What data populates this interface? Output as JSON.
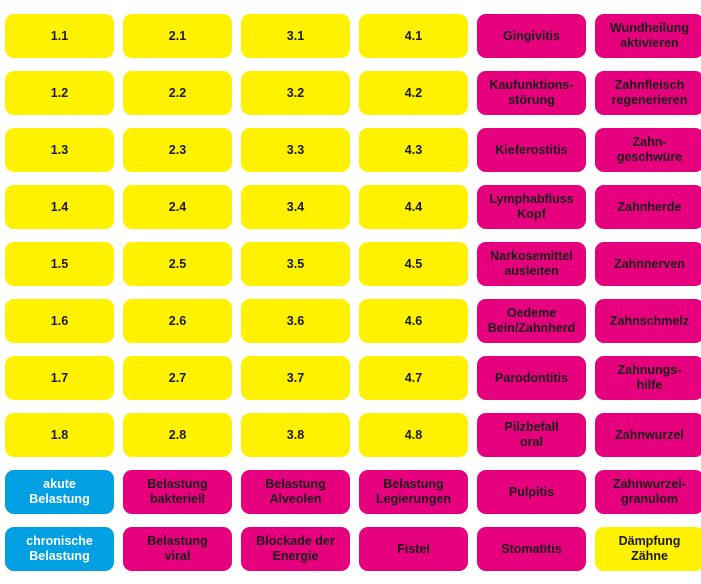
{
  "colors": {
    "yellow": "#fff200",
    "magenta": "#e6007e",
    "blue": "#00a0e3"
  },
  "rows": [
    [
      {
        "label": "1.1",
        "color": "yellow"
      },
      {
        "label": "2.1",
        "color": "yellow"
      },
      {
        "label": "3.1",
        "color": "yellow"
      },
      {
        "label": "4.1",
        "color": "yellow"
      },
      {
        "label": "Gingivitis",
        "color": "magenta"
      },
      {
        "label": "Wundheilung\naktivieren",
        "color": "magenta"
      }
    ],
    [
      {
        "label": "1.2",
        "color": "yellow"
      },
      {
        "label": "2.2",
        "color": "yellow"
      },
      {
        "label": "3.2",
        "color": "yellow"
      },
      {
        "label": "4.2",
        "color": "yellow"
      },
      {
        "label": "Kaufunktions-\nstörung",
        "color": "magenta"
      },
      {
        "label": "Zahnfleisch\nregenerieren",
        "color": "magenta"
      }
    ],
    [
      {
        "label": "1.3",
        "color": "yellow"
      },
      {
        "label": "2.3",
        "color": "yellow"
      },
      {
        "label": "3.3",
        "color": "yellow"
      },
      {
        "label": "4.3",
        "color": "yellow"
      },
      {
        "label": "Kieferostitis",
        "color": "magenta"
      },
      {
        "label": "Zahn-\ngeschwüre",
        "color": "magenta"
      }
    ],
    [
      {
        "label": "1.4",
        "color": "yellow"
      },
      {
        "label": "2.4",
        "color": "yellow"
      },
      {
        "label": "3.4",
        "color": "yellow"
      },
      {
        "label": "4.4",
        "color": "yellow"
      },
      {
        "label": "Lymphabfluss\nKopf",
        "color": "magenta"
      },
      {
        "label": "Zahnherde",
        "color": "magenta"
      }
    ],
    [
      {
        "label": "1.5",
        "color": "yellow"
      },
      {
        "label": "2.5",
        "color": "yellow"
      },
      {
        "label": "3.5",
        "color": "yellow"
      },
      {
        "label": "4.5",
        "color": "yellow"
      },
      {
        "label": "Narkosemittel\nausleiten",
        "color": "magenta"
      },
      {
        "label": "Zahnnerven",
        "color": "magenta"
      }
    ],
    [
      {
        "label": "1.6",
        "color": "yellow"
      },
      {
        "label": "2.6",
        "color": "yellow"
      },
      {
        "label": "3.6",
        "color": "yellow"
      },
      {
        "label": "4.6",
        "color": "yellow"
      },
      {
        "label": "Oedeme\nBein/Zahnherd",
        "color": "magenta"
      },
      {
        "label": "Zahnschmelz",
        "color": "magenta"
      }
    ],
    [
      {
        "label": "1.7",
        "color": "yellow"
      },
      {
        "label": "2.7",
        "color": "yellow"
      },
      {
        "label": "3.7",
        "color": "yellow"
      },
      {
        "label": "4.7",
        "color": "yellow"
      },
      {
        "label": "Parodontitis",
        "color": "magenta"
      },
      {
        "label": "Zahnungs-\nhilfe",
        "color": "magenta"
      }
    ],
    [
      {
        "label": "1.8",
        "color": "yellow"
      },
      {
        "label": "2.8",
        "color": "yellow"
      },
      {
        "label": "3.8",
        "color": "yellow"
      },
      {
        "label": "4.8",
        "color": "yellow"
      },
      {
        "label": "Pilzbefall\noral",
        "color": "magenta"
      },
      {
        "label": "Zahnwurzel",
        "color": "magenta"
      }
    ],
    [
      {
        "label": "akute\nBelastung",
        "color": "blue"
      },
      {
        "label": "Belastung\nbakteriell",
        "color": "magenta"
      },
      {
        "label": "Belastung\nAlveolen",
        "color": "magenta"
      },
      {
        "label": "Belastung\nLegierungen",
        "color": "magenta"
      },
      {
        "label": "Pulpitis",
        "color": "magenta"
      },
      {
        "label": "Zahnwurzel-\ngranulom",
        "color": "magenta"
      }
    ],
    [
      {
        "label": "chronische\nBelastung",
        "color": "blue"
      },
      {
        "label": "Belastung\nviral",
        "color": "magenta"
      },
      {
        "label": "Blockade der\nEnergie",
        "color": "magenta"
      },
      {
        "label": "Fistel",
        "color": "magenta"
      },
      {
        "label": "Stomatitis",
        "color": "magenta"
      },
      {
        "label": "Dämpfung\nZähne",
        "color": "yellow"
      }
    ]
  ]
}
